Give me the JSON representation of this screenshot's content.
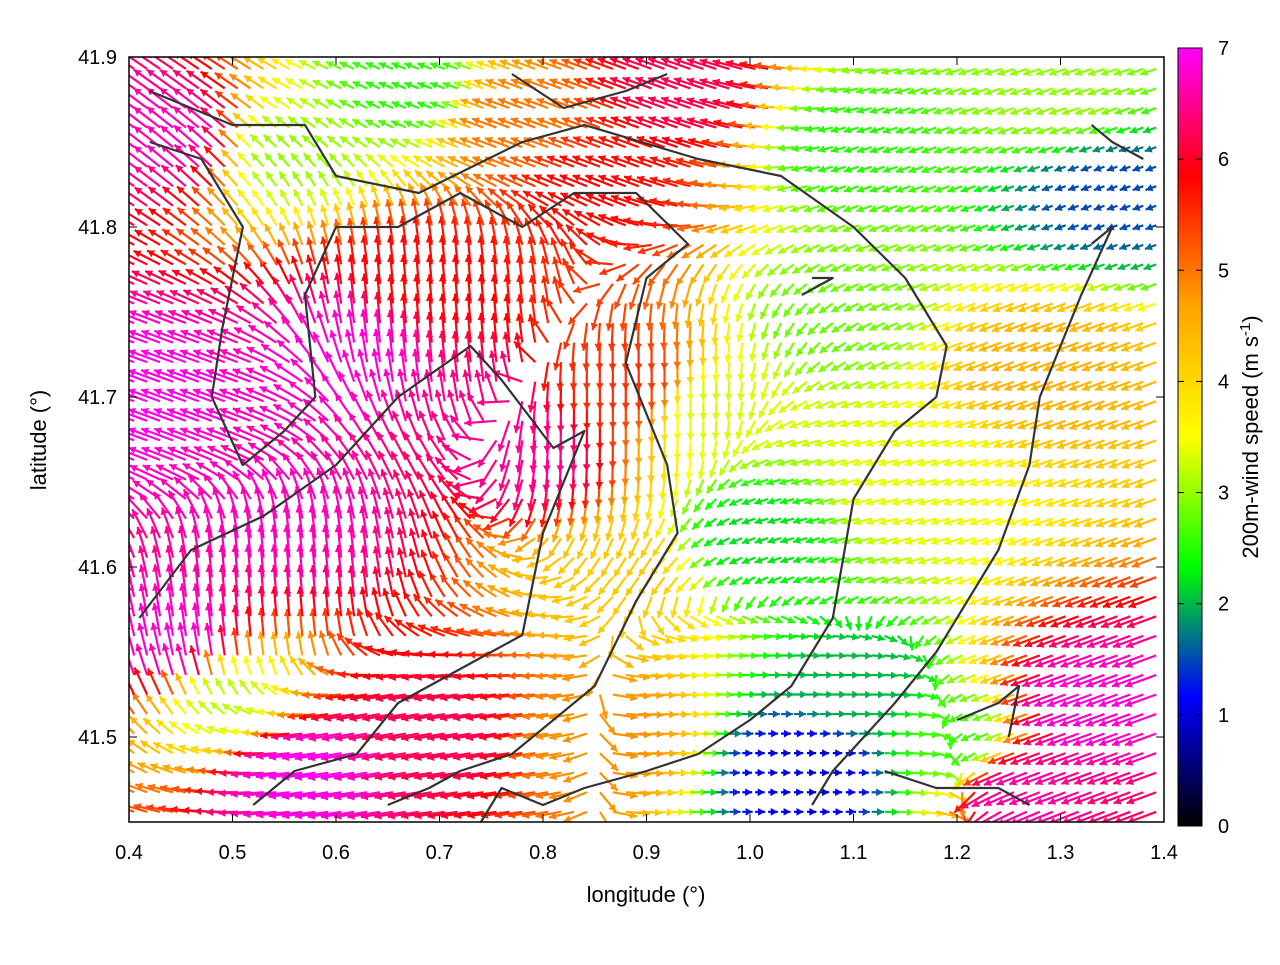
{
  "chart_data": {
    "type": "vector_field",
    "xlabel": "longitude (°)",
    "ylabel": "latitude (°)",
    "xlim": [
      0.4,
      1.4
    ],
    "ylim": [
      41.45,
      41.9
    ],
    "x_ticks": [
      "0.4",
      "0.5",
      "0.6",
      "0.7",
      "0.8",
      "0.9",
      "1.0",
      "1.1",
      "1.2",
      "1.3",
      "1.4"
    ],
    "y_ticks": [
      "41.5",
      "41.6",
      "41.7",
      "41.8",
      "41.9"
    ],
    "y_tick_values": [
      41.5,
      41.6,
      41.7,
      41.8,
      41.9
    ],
    "x_tick_values": [
      0.4,
      0.5,
      0.6,
      0.7,
      0.8,
      0.9,
      1.0,
      1.1,
      1.2,
      1.3,
      1.4
    ],
    "colorbar": {
      "label_main": "200m-wind speed (m s",
      "label_sup": "-1",
      "label_end": ")",
      "range": [
        0,
        7
      ],
      "ticks": [
        "0",
        "1",
        "2",
        "3",
        "4",
        "5",
        "6",
        "7"
      ],
      "palette": [
        "#000000",
        "#0000ff",
        "#00ff00",
        "#ffff00",
        "#ffa500",
        "#ff0000",
        "#ff00ff"
      ]
    },
    "speed_regions": [
      {
        "lon": 0.42,
        "lat": 41.7,
        "speed": 6.9
      },
      {
        "lon": 0.45,
        "lat": 41.55,
        "speed": 6.8
      },
      {
        "lon": 0.55,
        "lat": 41.62,
        "speed": 6.7
      },
      {
        "lon": 0.62,
        "lat": 41.72,
        "speed": 6.8
      },
      {
        "lon": 0.58,
        "lat": 41.48,
        "speed": 6.9
      },
      {
        "lon": 0.45,
        "lat": 41.85,
        "speed": 6.7
      },
      {
        "lon": 0.5,
        "lat": 41.52,
        "speed": 3.2
      },
      {
        "lon": 0.56,
        "lat": 41.84,
        "speed": 3.0
      },
      {
        "lon": 0.68,
        "lat": 41.88,
        "speed": 2.5
      },
      {
        "lon": 0.78,
        "lat": 41.86,
        "speed": 5.0
      },
      {
        "lon": 0.78,
        "lat": 41.68,
        "speed": 6.5
      },
      {
        "lon": 0.68,
        "lat": 41.76,
        "speed": 5.8
      },
      {
        "lon": 0.88,
        "lat": 41.72,
        "speed": 5.5
      },
      {
        "lon": 0.86,
        "lat": 41.82,
        "speed": 5.8
      },
      {
        "lon": 0.88,
        "lat": 41.6,
        "speed": 4.2
      },
      {
        "lon": 0.95,
        "lat": 41.88,
        "speed": 6.2
      },
      {
        "lon": 0.97,
        "lat": 41.7,
        "speed": 3.3
      },
      {
        "lon": 1.08,
        "lat": 41.75,
        "speed": 2.8
      },
      {
        "lon": 1.1,
        "lat": 41.85,
        "speed": 2.5
      },
      {
        "lon": 1.16,
        "lat": 41.65,
        "speed": 3.4
      },
      {
        "lon": 1.01,
        "lat": 41.62,
        "speed": 2.2
      },
      {
        "lon": 1.3,
        "lat": 41.72,
        "speed": 4.5
      },
      {
        "lon": 1.35,
        "lat": 41.82,
        "speed": 1.5
      },
      {
        "lon": 1.3,
        "lat": 41.88,
        "speed": 3.0
      },
      {
        "lon": 1.1,
        "lat": 41.53,
        "speed": 2.0
      },
      {
        "lon": 1.05,
        "lat": 41.48,
        "speed": 1.0
      },
      {
        "lon": 1.2,
        "lat": 41.5,
        "speed": 2.6
      },
      {
        "lon": 1.34,
        "lat": 41.52,
        "speed": 6.8
      },
      {
        "lon": 1.27,
        "lat": 41.47,
        "speed": 6.6
      },
      {
        "lon": 0.72,
        "lat": 41.5,
        "speed": 6.2
      },
      {
        "lon": 0.85,
        "lat": 41.5,
        "speed": 4.8
      }
    ],
    "direction_regions": [
      {
        "lon": 0.45,
        "lat": 41.7,
        "dir": 160
      },
      {
        "lon": 0.55,
        "lat": 41.58,
        "dir": 95
      },
      {
        "lon": 0.7,
        "lat": 41.75,
        "dir": 95
      },
      {
        "lon": 0.9,
        "lat": 41.7,
        "dir": 270
      },
      {
        "lon": 1.1,
        "lat": 41.65,
        "dir": 195
      },
      {
        "lon": 1.25,
        "lat": 41.8,
        "dir": 200
      },
      {
        "lon": 1.05,
        "lat": 41.5,
        "dir": 0
      },
      {
        "lon": 1.33,
        "lat": 41.52,
        "dir": 200
      },
      {
        "lon": 0.8,
        "lat": 41.87,
        "dir": 160
      },
      {
        "lon": 0.65,
        "lat": 41.5,
        "dir": 190
      }
    ],
    "contours": [
      [
        [
          0.42,
          41.88
        ],
        [
          0.5,
          41.86
        ],
        [
          0.57,
          41.86
        ],
        [
          0.6,
          41.83
        ],
        [
          0.68,
          41.82
        ],
        [
          0.78,
          41.85
        ],
        [
          0.84,
          41.86
        ],
        [
          0.95,
          41.84
        ],
        [
          1.03,
          41.83
        ],
        [
          1.1,
          41.8
        ],
        [
          1.15,
          41.77
        ],
        [
          1.19,
          41.73
        ],
        [
          1.18,
          41.7
        ],
        [
          1.14,
          41.68
        ],
        [
          1.1,
          41.64
        ],
        [
          1.08,
          41.57
        ],
        [
          1.04,
          41.53
        ],
        [
          1.0,
          41.51
        ],
        [
          0.95,
          41.49
        ],
        [
          0.9,
          41.48
        ],
        [
          0.84,
          41.47
        ],
        [
          0.8,
          41.46
        ],
        [
          0.76,
          41.47
        ],
        [
          0.74,
          41.45
        ]
      ],
      [
        [
          0.42,
          41.85
        ],
        [
          0.47,
          41.84
        ],
        [
          0.51,
          41.8
        ],
        [
          0.49,
          41.74
        ],
        [
          0.48,
          41.7
        ],
        [
          0.51,
          41.66
        ],
        [
          0.55,
          41.68
        ],
        [
          0.58,
          41.7
        ],
        [
          0.57,
          41.76
        ],
        [
          0.6,
          41.8
        ],
        [
          0.66,
          41.8
        ],
        [
          0.72,
          41.82
        ],
        [
          0.78,
          41.8
        ],
        [
          0.83,
          41.82
        ],
        [
          0.89,
          41.82
        ],
        [
          0.94,
          41.79
        ],
        [
          0.9,
          41.77
        ],
        [
          0.88,
          41.72
        ],
        [
          0.92,
          41.66
        ],
        [
          0.93,
          41.62
        ],
        [
          0.89,
          41.58
        ],
        [
          0.85,
          41.53
        ],
        [
          0.81,
          41.51
        ],
        [
          0.77,
          41.49
        ],
        [
          0.72,
          41.48
        ],
        [
          0.69,
          41.47
        ],
        [
          0.65,
          41.46
        ]
      ],
      [
        [
          0.41,
          41.57
        ],
        [
          0.46,
          41.61
        ],
        [
          0.53,
          41.63
        ],
        [
          0.6,
          41.66
        ],
        [
          0.66,
          41.7
        ],
        [
          0.73,
          41.73
        ],
        [
          0.76,
          41.71
        ],
        [
          0.81,
          41.67
        ],
        [
          0.84,
          41.68
        ],
        [
          0.8,
          41.62
        ],
        [
          0.78,
          41.56
        ],
        [
          0.72,
          41.54
        ],
        [
          0.66,
          41.52
        ],
        [
          0.62,
          41.49
        ],
        [
          0.56,
          41.48
        ],
        [
          0.52,
          41.46
        ]
      ],
      [
        [
          1.33,
          41.79
        ],
        [
          1.35,
          41.8
        ],
        [
          1.32,
          41.76
        ],
        [
          1.28,
          41.7
        ],
        [
          1.27,
          41.66
        ],
        [
          1.24,
          41.61
        ],
        [
          1.21,
          41.58
        ],
        [
          1.18,
          41.55
        ],
        [
          1.14,
          41.52
        ],
        [
          1.11,
          41.5
        ],
        [
          1.08,
          41.48
        ],
        [
          1.06,
          41.46
        ]
      ],
      [
        [
          1.33,
          41.86
        ],
        [
          1.35,
          41.85
        ],
        [
          1.38,
          41.84
        ]
      ],
      [
        [
          0.77,
          41.89
        ],
        [
          0.82,
          41.87
        ],
        [
          0.88,
          41.88
        ],
        [
          0.92,
          41.89
        ]
      ],
      [
        [
          1.05,
          41.76
        ],
        [
          1.08,
          41.77
        ],
        [
          1.06,
          41.77
        ]
      ],
      [
        [
          1.13,
          41.48
        ],
        [
          1.18,
          41.47
        ],
        [
          1.24,
          41.47
        ],
        [
          1.27,
          41.46
        ]
      ],
      [
        [
          1.2,
          41.51
        ],
        [
          1.24,
          41.52
        ],
        [
          1.26,
          41.53
        ],
        [
          1.25,
          41.5
        ]
      ]
    ]
  }
}
